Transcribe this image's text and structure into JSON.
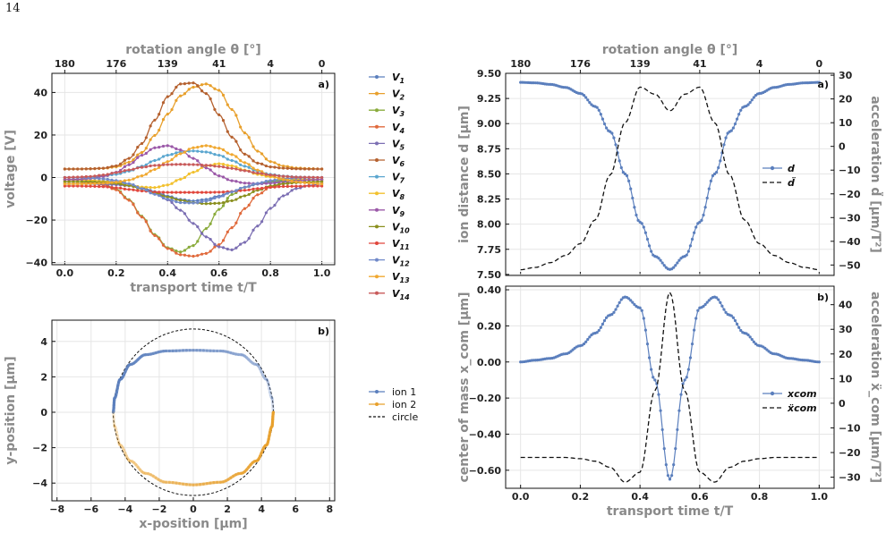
{
  "page_number": "14",
  "chart_data": [
    {
      "id": "voltages",
      "type": "line",
      "panel_label": "a)",
      "xlabel": "transport time t/T",
      "ylabel": "voltage [V]",
      "top_xlabel": "rotation angle θ [°]",
      "top_ticks": [
        "180",
        "176",
        "139",
        "41",
        "4",
        "0"
      ],
      "xlim": [
        -0.05,
        1.05
      ],
      "ylim": [
        -41,
        49
      ],
      "xticks": [
        0.0,
        0.2,
        0.4,
        0.6,
        0.8,
        1.0
      ],
      "yticks": [
        -40,
        -20,
        0,
        20,
        40
      ],
      "grid": true,
      "legend_position": "outside-right",
      "x": [
        0.0,
        0.05,
        0.1,
        0.15,
        0.2,
        0.25,
        0.3,
        0.35,
        0.4,
        0.45,
        0.5,
        0.55,
        0.6,
        0.65,
        0.7,
        0.75,
        0.8,
        0.85,
        0.9,
        0.95,
        1.0
      ],
      "series": [
        {
          "name": "V1",
          "color": "#5b7fbd",
          "values": [
            -1.0,
            -1.1,
            -1.3,
            -1.6,
            -2.1,
            -3.1,
            -4.6,
            -6.6,
            -8.7,
            -10.3,
            -11.0,
            -10.3,
            -8.7,
            -6.6,
            -4.6,
            -3.1,
            -2.1,
            -1.6,
            -1.3,
            -1.1,
            -1.0
          ]
        },
        {
          "name": "V2",
          "color": "#e8a02c",
          "values": [
            4.0,
            4.0,
            4.1,
            4.3,
            5.0,
            7.2,
            11.8,
            19.8,
            29.8,
            38.4,
            42.5,
            44.0,
            41.0,
            32.0,
            21.0,
            12.4,
            7.5,
            5.4,
            4.5,
            4.2,
            4.0
          ]
        },
        {
          "name": "V3",
          "color": "#8aab3c",
          "values": [
            -1.0,
            -1.2,
            -1.7,
            -2.9,
            -5.4,
            -10.4,
            -18.2,
            -26.8,
            -33.0,
            -35.0,
            -32.0,
            -24.0,
            -15.0,
            -8.0,
            -4.5,
            -2.8,
            -1.8,
            -1.3,
            -1.1,
            -1.0,
            -1.0
          ]
        },
        {
          "name": "V4",
          "color": "#e06a3c",
          "values": [
            -2.0,
            -2.1,
            -2.5,
            -3.5,
            -5.8,
            -10.7,
            -18.6,
            -27.3,
            -33.4,
            -36.3,
            -37.0,
            -35.7,
            -31.6,
            -23.6,
            -14.6,
            -8.1,
            -4.6,
            -3.0,
            -2.3,
            -2.1,
            -2.0
          ]
        },
        {
          "name": "V5",
          "color": "#7c6fb3",
          "values": [
            -3.0,
            -3.0,
            -3.0,
            -3.1,
            -3.4,
            -3.9,
            -5.0,
            -7.0,
            -10.5,
            -15.4,
            -21.6,
            -27.9,
            -32.6,
            -34.0,
            -30.5,
            -22.8,
            -14.5,
            -8.6,
            -5.2,
            -3.7,
            -3.0
          ]
        },
        {
          "name": "V6",
          "color": "#b5612f",
          "values": [
            4.0,
            4.0,
            4.1,
            4.4,
            5.5,
            9.0,
            16.0,
            27.0,
            38.0,
            44.0,
            44.5,
            39.5,
            29.5,
            19.0,
            11.0,
            6.8,
            5.0,
            4.4,
            4.1,
            4.0,
            4.0
          ]
        },
        {
          "name": "V7",
          "color": "#5aa6cf",
          "values": [
            0.0,
            0.1,
            0.3,
            0.7,
            1.5,
            3.0,
            5.3,
            8.0,
            10.5,
            12.0,
            12.5,
            12.0,
            10.5,
            8.0,
            5.3,
            3.0,
            1.5,
            0.7,
            0.3,
            0.1,
            0.0
          ]
        },
        {
          "name": "V8",
          "color": "#f2c12e",
          "values": [
            -1.0,
            -1.1,
            -1.3,
            -1.8,
            -2.6,
            -3.6,
            -4.5,
            -4.7,
            -3.5,
            -0.8,
            2.5,
            5.5,
            6.5,
            5.5,
            3.5,
            1.5,
            0.3,
            -0.3,
            -0.7,
            -0.9,
            -1.0
          ]
        },
        {
          "name": "V9",
          "color": "#9b59a8",
          "values": [
            -1.0,
            -0.9,
            -0.5,
            0.5,
            2.5,
            6.0,
            10.5,
            14.0,
            15.0,
            13.0,
            9.0,
            4.5,
            0.8,
            -1.5,
            -2.6,
            -2.9,
            -2.7,
            -2.2,
            -1.6,
            -1.2,
            -1.0
          ]
        },
        {
          "name": "V10",
          "color": "#8a8f1e",
          "values": [
            -2.0,
            -2.0,
            -2.1,
            -2.3,
            -2.8,
            -3.8,
            -5.4,
            -7.3,
            -9.2,
            -10.7,
            -11.8,
            -12.3,
            -12.1,
            -10.9,
            -8.6,
            -6.0,
            -4.0,
            -2.9,
            -2.4,
            -2.1,
            -2.0
          ]
        },
        {
          "name": "V11",
          "color": "#e0463c",
          "values": [
            -4.0,
            -4.0,
            -4.1,
            -4.3,
            -4.8,
            -5.6,
            -6.3,
            -6.8,
            -7.0,
            -7.0,
            -7.0,
            -7.0,
            -6.9,
            -6.6,
            -6.0,
            -5.2,
            -4.6,
            -4.2,
            -4.1,
            -4.0,
            -4.0
          ]
        },
        {
          "name": "V12",
          "color": "#7089c9",
          "values": [
            0.0,
            -0.1,
            -0.2,
            -0.6,
            -1.4,
            -2.9,
            -5.2,
            -7.9,
            -10.2,
            -11.8,
            -12.0,
            -11.1,
            -9.2,
            -6.8,
            -4.5,
            -2.7,
            -1.4,
            -0.6,
            -0.2,
            -0.1,
            0.0
          ]
        },
        {
          "name": "V13",
          "color": "#f0a830",
          "values": [
            -3.0,
            -3.0,
            -2.9,
            -2.7,
            -2.2,
            -1.2,
            0.8,
            3.8,
            7.5,
            11.2,
            14.0,
            15.0,
            13.8,
            10.8,
            7.0,
            3.5,
            0.8,
            -0.9,
            -2.0,
            -2.6,
            -3.0
          ]
        },
        {
          "name": "V14",
          "color": "#c85a5a",
          "values": [
            0.0,
            0.2,
            0.5,
            1.2,
            2.3,
            3.6,
            4.8,
            5.7,
            6.1,
            6.2,
            6.1,
            5.8,
            5.2,
            4.3,
            3.2,
            2.1,
            1.2,
            0.6,
            0.2,
            0.1,
            0.0
          ]
        }
      ]
    },
    {
      "id": "trajectory",
      "type": "line",
      "panel_label": "b)",
      "xlabel": "x-position [μm]",
      "ylabel": "y-position [μm]",
      "xlim": [
        -8.3,
        8.3
      ],
      "ylim": [
        -5.0,
        5.2
      ],
      "xticks": [
        -8,
        -6,
        -4,
        -2,
        0,
        2,
        4,
        6,
        8
      ],
      "yticks": [
        -4,
        -2,
        0,
        2,
        4
      ],
      "grid": true,
      "legend_position": "outside-right",
      "series": [
        {
          "name": "ion 1",
          "color": "#5b7fbd",
          "x": [
            -4.7,
            -4.62,
            -4.3,
            -3.7,
            -2.8,
            -1.6,
            0.0,
            1.6,
            2.8,
            3.7,
            4.3,
            4.62,
            4.7
          ],
          "y": [
            0.0,
            0.8,
            1.85,
            2.7,
            3.25,
            3.46,
            3.5,
            3.46,
            3.25,
            2.7,
            1.85,
            0.8,
            0.0
          ]
        },
        {
          "name": "ion 2",
          "color": "#e8a02c",
          "x": [
            -4.7,
            -4.62,
            -4.3,
            -3.7,
            -2.8,
            -1.6,
            0.0,
            1.6,
            2.8,
            3.7,
            4.3,
            4.62,
            4.7
          ],
          "y": [
            0.0,
            -0.8,
            -1.85,
            -2.75,
            -3.45,
            -3.95,
            -4.1,
            -3.95,
            -3.45,
            -2.75,
            -1.85,
            -0.8,
            0.0
          ]
        },
        {
          "name": "circle",
          "color": "#111111",
          "radius": 4.7
        }
      ]
    },
    {
      "id": "distance",
      "type": "line",
      "panel_label": "a)",
      "xlabel": "",
      "ylabel": "ion distance d [μm]",
      "ylabel_right": "acceleration d̈ [μm/T²]",
      "top_xlabel": "rotation angle θ [°]",
      "top_ticks": [
        "180",
        "176",
        "139",
        "41",
        "4",
        "0"
      ],
      "xlim": [
        -0.05,
        1.05
      ],
      "ylim": [
        7.49,
        9.5
      ],
      "ylim_right": [
        -54.4,
        30.8
      ],
      "yticks": [
        7.5,
        7.75,
        8.0,
        8.25,
        8.5,
        8.75,
        9.0,
        9.25,
        9.5
      ],
      "yticks_right": [
        -50,
        -40,
        -30,
        -20,
        -10,
        0,
        10,
        20,
        30
      ],
      "grid": true,
      "legend_position": "right",
      "x": [
        0.0,
        0.05,
        0.1,
        0.15,
        0.2,
        0.25,
        0.3,
        0.35,
        0.4,
        0.45,
        0.5,
        0.55,
        0.6,
        0.65,
        0.7,
        0.75,
        0.8,
        0.85,
        0.9,
        0.95,
        1.0
      ],
      "series": [
        {
          "name": "d",
          "axis": "left",
          "color": "#5b7fbd",
          "values": [
            9.41,
            9.405,
            9.39,
            9.36,
            9.3,
            9.17,
            8.92,
            8.5,
            8.02,
            7.68,
            7.55,
            7.68,
            8.02,
            8.5,
            8.92,
            9.17,
            9.3,
            9.36,
            9.39,
            9.405,
            9.41
          ]
        },
        {
          "name": "d̈",
          "axis": "right",
          "color": "#111111",
          "dash": true,
          "values": [
            -52,
            -51,
            -49,
            -46,
            -41,
            -31,
            -12,
            10,
            25,
            22,
            15,
            22,
            25,
            10,
            -12,
            -31,
            -41,
            -46,
            -49,
            -51,
            -52
          ]
        }
      ]
    },
    {
      "id": "com",
      "type": "line",
      "panel_label": "b)",
      "xlabel": "transport time t/T",
      "ylabel": "center of mass x_com [μm]",
      "ylabel_right": "acceleration ẍ_com [μm/T²]",
      "xlim": [
        -0.05,
        1.05
      ],
      "ylim": [
        -0.7,
        0.42
      ],
      "ylim_right": [
        -34.5,
        47.5
      ],
      "xticks": [
        0.0,
        0.2,
        0.4,
        0.6,
        0.8,
        1.0
      ],
      "yticks": [
        -0.6,
        -0.4,
        -0.2,
        0.0,
        0.2,
        0.4
      ],
      "yticks_right": [
        -30,
        -20,
        -10,
        0,
        10,
        20,
        30,
        40
      ],
      "grid": true,
      "legend_position": "right",
      "x": [
        0.0,
        0.05,
        0.1,
        0.15,
        0.2,
        0.25,
        0.3,
        0.35,
        0.4,
        0.45,
        0.5,
        0.55,
        0.6,
        0.65,
        0.7,
        0.75,
        0.8,
        0.85,
        0.9,
        0.95,
        1.0
      ],
      "series": [
        {
          "name": "x_com",
          "axis": "left",
          "color": "#5b7fbd",
          "values": [
            0.0,
            0.01,
            0.02,
            0.045,
            0.09,
            0.16,
            0.26,
            0.36,
            0.3,
            -0.1,
            -0.65,
            -0.1,
            0.3,
            0.36,
            0.26,
            0.16,
            0.09,
            0.045,
            0.02,
            0.01,
            0.0
          ]
        },
        {
          "name": "ẍ_com",
          "axis": "right",
          "color": "#111111",
          "dash": true,
          "values": [
            -22,
            -22,
            -22,
            -22,
            -22.5,
            -23.5,
            -26,
            -32,
            -28,
            5,
            45,
            5,
            -28,
            -32,
            -26,
            -23.5,
            -22.5,
            -22,
            -22,
            -22,
            -22
          ]
        }
      ]
    }
  ]
}
